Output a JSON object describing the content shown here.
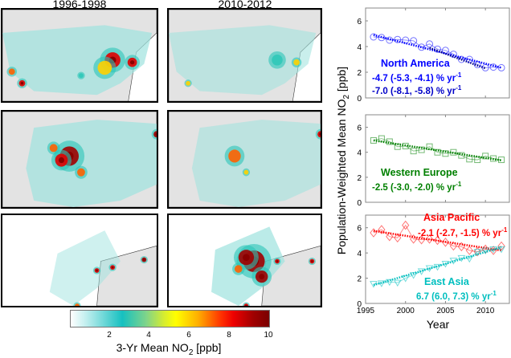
{
  "maps": {
    "column_titles": [
      "1996-1998",
      "2010-2012"
    ],
    "rows": [
      {
        "region": "North America",
        "panels": [
          "1996-1998",
          "2010-2012"
        ]
      },
      {
        "region": "Europe",
        "panels": [
          "1996-1998",
          "2010-2012"
        ]
      },
      {
        "region": "East Asia",
        "panels": [
          "1996-1998",
          "2010-2012"
        ]
      }
    ],
    "land_color": "#e3e3e3",
    "colorbar": {
      "ticks": [
        "2",
        "4",
        "6",
        "8",
        "10"
      ],
      "range": [
        0,
        10
      ],
      "label_prefix": "3-Yr Mean NO",
      "label_sub": "2",
      "label_suffix": " [ppb]"
    }
  },
  "chart_data": {
    "type": "line",
    "xlabel": "Year",
    "ylabel_prefix": "Population-Weighted Mean NO",
    "ylabel_sub": "2",
    "ylabel_suffix": " [ppb]",
    "xlim": [
      1995,
      2013
    ],
    "ylim": [
      0,
      7
    ],
    "xticks": [
      1995,
      2000,
      2005,
      2010
    ],
    "yticks": [
      0,
      2,
      4,
      6
    ],
    "panels": [
      {
        "name": "North America",
        "color": "#0000ff",
        "marker": "circle",
        "x": [
          1996,
          1997,
          1998,
          1999,
          2000,
          2001,
          2002,
          2003,
          2004,
          2005,
          2006,
          2007,
          2008,
          2009,
          2010,
          2011,
          2012
        ],
        "values": [
          4.75,
          4.7,
          4.5,
          4.55,
          4.5,
          4.45,
          3.95,
          4.2,
          3.8,
          3.7,
          3.4,
          3.0,
          3.0,
          2.6,
          2.35,
          2.4,
          2.35
        ],
        "trends": [
          {
            "x": [
              1996,
              2012
            ],
            "y": [
              4.9,
              2.35
            ],
            "label": "-4.7 (-5.3, -4.1) % yr",
            "sup": "-1"
          },
          {
            "x": [
              2003,
              2010
            ],
            "y": [
              3.9,
              2.3
            ],
            "label": "-7.0 (-8.1, -5.8) % yr",
            "sup": "-1"
          }
        ],
        "title": "North America",
        "text_color": "#0000ff",
        "text_color2": "#0000c8"
      },
      {
        "name": "Western Europe",
        "color": "#008000",
        "marker": "square",
        "x": [
          1996,
          1997,
          1998,
          1999,
          2000,
          2001,
          2002,
          2003,
          2004,
          2005,
          2006,
          2007,
          2008,
          2009,
          2010,
          2011,
          2012
        ],
        "values": [
          4.95,
          5.1,
          4.85,
          4.45,
          4.5,
          4.1,
          4.2,
          4.45,
          4.0,
          3.9,
          4.0,
          3.75,
          3.45,
          3.4,
          3.7,
          3.5,
          3.4
        ],
        "trends": [
          {
            "x": [
              1996,
              2012
            ],
            "y": [
              4.95,
              3.35
            ],
            "label": "-2.5 (-3.0, -2.0) % yr",
            "sup": "-1"
          }
        ],
        "title": "Western Europe",
        "text_color": "#008000"
      },
      {
        "name": "Asia Pacific",
        "color": "#ff0000",
        "marker": "diamond",
        "x": [
          1996,
          1997,
          1998,
          1999,
          2000,
          2001,
          2002,
          2003,
          2004,
          2005,
          2006,
          2007,
          2008,
          2009,
          2010,
          2011,
          2012
        ],
        "values": [
          5.6,
          5.85,
          5.3,
          5.2,
          6.2,
          5.1,
          5.05,
          5.1,
          5.0,
          4.85,
          4.55,
          4.5,
          4.2,
          4.1,
          4.3,
          4.2,
          4.55
        ],
        "trends": [
          {
            "x": [
              1996,
              2012
            ],
            "y": [
              5.75,
              4.2
            ],
            "label": "-2.1 (-2.7, -1.5) % yr",
            "sup": "-1"
          }
        ],
        "title": "Asia Pacific",
        "text_color": "#ff0000"
      },
      {
        "name": "East Asia",
        "color": "#00bfbf",
        "marker": "triangle-down",
        "x": [
          1996,
          1997,
          1998,
          1999,
          2000,
          2001,
          2002,
          2003,
          2004,
          2005,
          2006,
          2007,
          2008,
          2009,
          2010,
          2011,
          2012
        ],
        "values": [
          1.55,
          1.6,
          1.7,
          1.65,
          2.0,
          2.25,
          2.55,
          2.8,
          2.9,
          3.15,
          3.4,
          3.6,
          3.55,
          4.1,
          4.2,
          4.3,
          4.3
        ],
        "trends": [
          {
            "x": [
              1996,
              2012
            ],
            "y": [
              1.45,
              4.45
            ],
            "label": "6.7 (6.0, 7.3) % yr",
            "sup": "-1"
          }
        ],
        "title": "East Asia",
        "text_color": "#00bfbf"
      }
    ]
  }
}
